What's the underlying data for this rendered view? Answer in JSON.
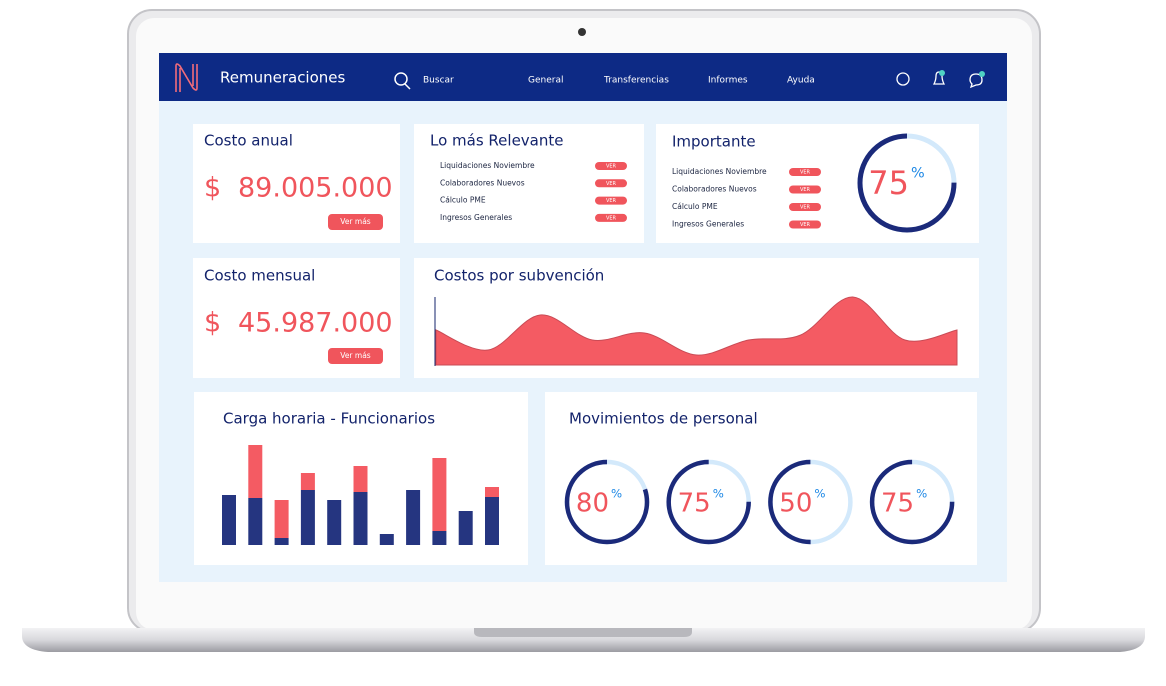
{
  "nav": {
    "brand": "Remuneraciones",
    "search": "Buscar",
    "links": [
      "General",
      "Transferencias",
      "Informes",
      "Ayuda"
    ]
  },
  "annual_cost": {
    "title": "Costo anual",
    "currency": "$",
    "amount": "89.005.000",
    "button": "Ver más"
  },
  "monthly_cost": {
    "title": "Costo mensual",
    "currency": "$",
    "amount": "45.987.000",
    "button": "Ver más"
  },
  "relevant": {
    "title": "Lo más Relevante",
    "items": [
      {
        "label": "Liquidaciones Noviembre",
        "button": "VER"
      },
      {
        "label": "Colaboradores Nuevos",
        "button": "VER"
      },
      {
        "label": "Cálculo PME",
        "button": "VER"
      },
      {
        "label": "Ingresos Generales",
        "button": "VER"
      }
    ]
  },
  "important": {
    "title": "Importante",
    "gauge": {
      "value": 75,
      "unit": "%"
    },
    "items": [
      {
        "label": "Liquidaciones Noviembre",
        "button": "VER"
      },
      {
        "label": "Colaboradores Nuevos",
        "button": "VER"
      },
      {
        "label": "Cálculo PME",
        "button": "VER"
      },
      {
        "label": "Ingresos Generales",
        "button": "VER"
      }
    ]
  },
  "subsidy_costs": {
    "type": "area",
    "title": "Costos por subvención",
    "color": "#f45b63",
    "values": [
      35,
      15,
      50,
      25,
      32,
      10,
      25,
      30,
      68,
      25,
      35
    ],
    "ylim": [
      0,
      100
    ]
  },
  "workload": {
    "type": "bar",
    "stacked": true,
    "title": "Carga horaria - Funcionarios",
    "ylim": [
      0,
      100
    ],
    "series": [
      {
        "color": "#253580",
        "values": [
          50,
          47,
          7,
          55,
          45,
          53,
          11,
          55,
          14,
          34,
          48
        ]
      },
      {
        "color": "#f45b63",
        "values": [
          0,
          53,
          38,
          17,
          0,
          26,
          0,
          0,
          73,
          0,
          10
        ]
      }
    ]
  },
  "movements": {
    "title": "Movimientos de personal",
    "gauges": [
      {
        "value": 80,
        "unit": "%"
      },
      {
        "value": 75,
        "unit": "%"
      },
      {
        "value": 50,
        "unit": "%"
      },
      {
        "value": 75,
        "unit": "%"
      }
    ]
  }
}
